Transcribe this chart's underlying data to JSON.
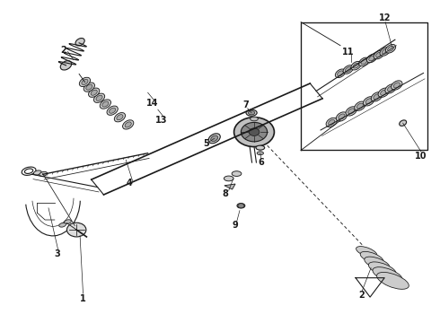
{
  "title": "",
  "bg_color": "#ffffff",
  "fg_color": "#1a1a1a",
  "fig_width": 4.9,
  "fig_height": 3.6,
  "dpi": 100
}
